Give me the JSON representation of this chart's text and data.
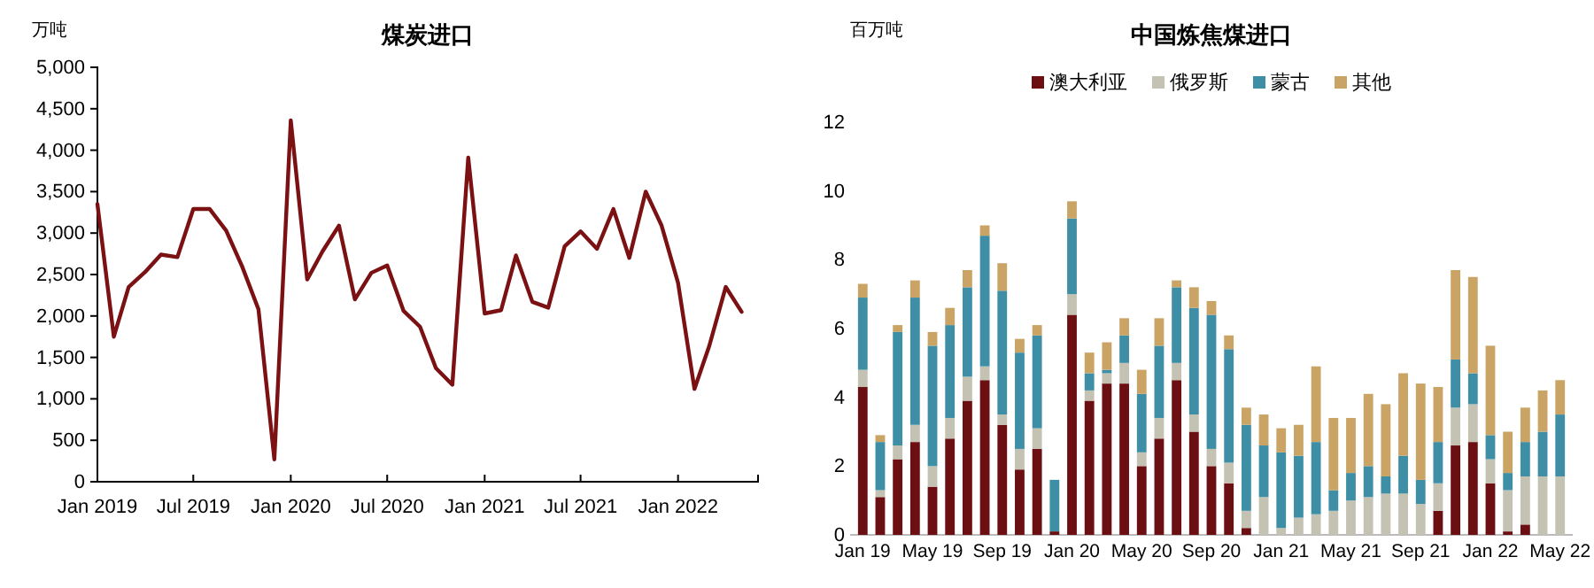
{
  "chart_data": [
    {
      "type": "line",
      "title": "煤炭进口",
      "ylabel": "万吨",
      "x": [
        "2019-01",
        "2019-02",
        "2019-03",
        "2019-04",
        "2019-05",
        "2019-06",
        "2019-07",
        "2019-08",
        "2019-09",
        "2019-10",
        "2019-11",
        "2019-12",
        "2020-01",
        "2020-02",
        "2020-03",
        "2020-04",
        "2020-05",
        "2020-06",
        "2020-07",
        "2020-08",
        "2020-09",
        "2020-10",
        "2020-11",
        "2020-12",
        "2021-01",
        "2021-02",
        "2021-03",
        "2021-04",
        "2021-05",
        "2021-06",
        "2021-07",
        "2021-08",
        "2021-09",
        "2021-10",
        "2021-11",
        "2021-12",
        "2022-01",
        "2022-02",
        "2022-03",
        "2022-04",
        "2022-05"
      ],
      "series": [
        {
          "color": "#7b1113",
          "values": [
            3350,
            1750,
            2350,
            2530,
            2740,
            2710,
            3290,
            3290,
            3030,
            2600,
            2080,
            270,
            4360,
            2440,
            2780,
            3090,
            2200,
            2520,
            2610,
            2060,
            1870,
            1370,
            1170,
            3910,
            2030,
            2070,
            2730,
            2170,
            2100,
            2840,
            3020,
            2810,
            3290,
            2700,
            3500,
            3090,
            2400,
            1120,
            1640,
            2350,
            2050
          ]
        }
      ],
      "xlim": [
        "2019-01",
        "2022-06"
      ],
      "xticks": [
        {
          "value": "2019-01",
          "label": "Jan 2019"
        },
        {
          "value": "2019-07",
          "label": "Jul 2019"
        },
        {
          "value": "2020-01",
          "label": "Jan 2020"
        },
        {
          "value": "2020-07",
          "label": "Jul 2020"
        },
        {
          "value": "2021-01",
          "label": "Jan 2021"
        },
        {
          "value": "2021-07",
          "label": "Jul 2021"
        },
        {
          "value": "2022-01",
          "label": "Jan 2022"
        }
      ],
      "ylim": [
        0,
        5000
      ],
      "yticks": [
        0,
        {
          "value": 500,
          "label": "500"
        },
        {
          "value": 1000,
          "label": "1,000"
        },
        {
          "value": 1500,
          "label": "1,500"
        },
        {
          "value": 2000,
          "label": "2,000"
        },
        {
          "value": 2500,
          "label": "2,500"
        },
        {
          "value": 3000,
          "label": "3,000"
        },
        {
          "value": 3500,
          "label": "3,500"
        },
        {
          "value": 4000,
          "label": "4,000"
        },
        {
          "value": 4500,
          "label": "4,500"
        },
        {
          "value": 5000,
          "label": "5,000"
        }
      ],
      "grid": false,
      "legend": false
    },
    {
      "type": "bar",
      "stacked": true,
      "title": "中国炼焦煤进口",
      "ylabel": "百万吨",
      "categories": [
        "Jan 19",
        null,
        null,
        null,
        "May 19",
        null,
        null,
        null,
        "Sep 19",
        null,
        null,
        null,
        "Jan 20",
        null,
        null,
        null,
        "May 20",
        null,
        null,
        null,
        "Sep 20",
        null,
        null,
        null,
        "Jan 21",
        null,
        null,
        null,
        "May 21",
        null,
        null,
        null,
        "Sep 21",
        null,
        null,
        null,
        "Jan 22",
        null,
        null,
        null,
        "May 22"
      ],
      "series": [
        {
          "name": "澳大利亚",
          "color": "#6b0f12",
          "values": [
            4.3,
            1.1,
            2.2,
            2.7,
            1.4,
            2.8,
            3.9,
            4.5,
            3.2,
            1.9,
            2.5,
            0.1,
            6.4,
            3.9,
            4.4,
            4.4,
            2.0,
            2.8,
            4.5,
            3.0,
            2.0,
            1.5,
            0.2,
            0,
            0,
            0,
            0,
            0,
            0,
            0,
            0,
            0,
            0,
            0.7,
            2.6,
            2.7,
            1.5,
            0.1,
            0.3,
            0,
            0
          ]
        },
        {
          "name": "俄罗斯",
          "color": "#c4c2b2",
          "values": [
            0.5,
            0.2,
            0.4,
            0.5,
            0.6,
            0.6,
            0.7,
            0.4,
            0.3,
            0.6,
            0.6,
            null,
            0.6,
            0.3,
            0.3,
            0.6,
            0.4,
            0.6,
            0.5,
            0.5,
            0.5,
            0.6,
            0.5,
            1.1,
            0.2,
            0.5,
            0.6,
            0.7,
            1.0,
            1.1,
            1.2,
            1.2,
            0.9,
            0.8,
            1.1,
            1.1,
            0.7,
            1.2,
            1.4,
            1.7,
            1.7
          ]
        },
        {
          "name": "蒙古",
          "color": "#3e8ea6",
          "values": [
            2.1,
            1.4,
            3.3,
            3.7,
            3.5,
            2.7,
            2.6,
            3.8,
            3.6,
            2.8,
            2.7,
            1.5,
            2.2,
            0.5,
            0.1,
            0.8,
            1.7,
            2.1,
            2.2,
            3.1,
            3.9,
            3.3,
            2.5,
            1.5,
            2.2,
            1.8,
            2.1,
            0.6,
            0.8,
            0.9,
            0.5,
            1.1,
            0.7,
            1.2,
            1.4,
            0.9,
            0.7,
            0.5,
            1.0,
            1.3,
            1.8
          ]
        },
        {
          "name": "其他",
          "color": "#c9a465",
          "values": [
            0.4,
            0.2,
            0.2,
            0.5,
            0.4,
            0.5,
            0.5,
            0.3,
            0.8,
            0.4,
            0.3,
            0,
            0.5,
            0.6,
            0.8,
            0.5,
            0.7,
            0.8,
            0.2,
            0.6,
            0.4,
            0.4,
            0.5,
            0.9,
            0.7,
            0.9,
            2.2,
            2.1,
            1.6,
            2.1,
            2.1,
            2.4,
            2.8,
            1.6,
            2.6,
            2.8,
            2.6,
            1.2,
            1.0,
            1.2,
            1.0
          ]
        }
      ],
      "ylim": [
        0,
        12
      ],
      "yticks": [
        0,
        2,
        4,
        6,
        8,
        10,
        12
      ],
      "grid": false,
      "legend": "top"
    }
  ]
}
